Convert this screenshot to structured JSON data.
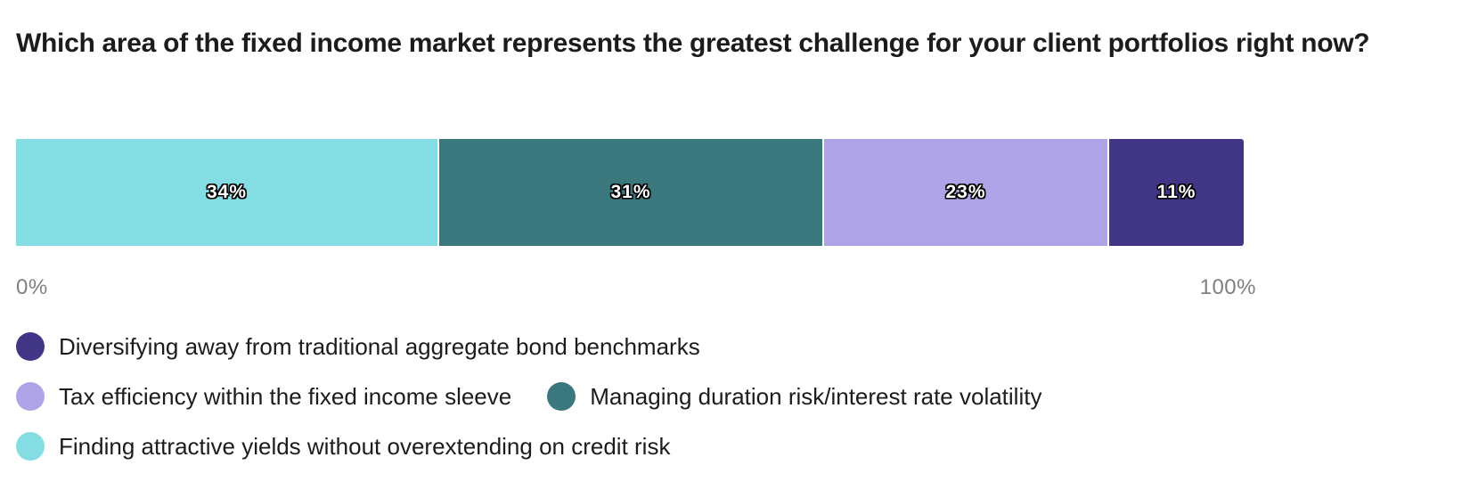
{
  "chart_data": {
    "type": "bar",
    "orientation": "horizontal-stacked-100",
    "title": "Which area of the fixed income market represents the greatest challenge for your client portfolios right now?",
    "xlim": [
      0,
      100
    ],
    "axis_labels": {
      "min": "0%",
      "max": "100%"
    },
    "grid": false,
    "legend_position": "bottom",
    "series": [
      {
        "name": "Finding attractive yields without overextending on credit risk",
        "value": 34,
        "label": "34%",
        "color": "#84dde3"
      },
      {
        "name": "Managing duration risk/interest rate volatility",
        "value": 31,
        "label": "31%",
        "color": "#3b787d"
      },
      {
        "name": "Tax efficiency within the fixed income sleeve",
        "value": 23,
        "label": "23%",
        "color": "#aea3e6"
      },
      {
        "name": "Diversifying away from traditional aggregate bond benchmarks",
        "value": 11,
        "label": "11%",
        "color": "#413585"
      }
    ],
    "legend_rows": [
      [
        3
      ],
      [
        2,
        1
      ],
      [
        0
      ]
    ]
  }
}
